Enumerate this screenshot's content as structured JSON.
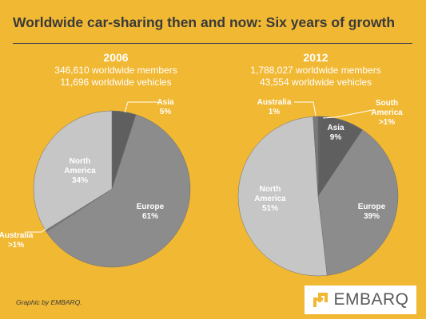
{
  "title": "Worldwide car-sharing then and now: Six years of growth",
  "credit": "Graphic by EMBARQ.",
  "logo_text": "EMBARQ",
  "colors": {
    "background": "#f1b833",
    "asia": "#5f5f5f",
    "south_america": "#5f5f5f",
    "europe": "#8c8c8c",
    "north_america": "#c6c6c6",
    "australia": "#7a7a7a"
  },
  "chart_data": [
    {
      "type": "pie",
      "title": "2006",
      "subtitle_lines": [
        "346,610 worldwide members",
        "11,696 worldwide vehicles"
      ],
      "slices": [
        {
          "name": "Asia",
          "label_lines": [
            "Asia",
            "5%"
          ],
          "value": 5
        },
        {
          "name": "Europe",
          "label_lines": [
            "Europe",
            "61%"
          ],
          "value": 61
        },
        {
          "name": "Australia",
          "label_lines": [
            "Australia",
            ">1%"
          ],
          "value": 0.4
        },
        {
          "name": "North America",
          "label_lines": [
            "North",
            "America",
            "34%"
          ],
          "value": 34
        }
      ]
    },
    {
      "type": "pie",
      "title": "2012",
      "subtitle_lines": [
        "1,788,027 worldwide members",
        "43,554 worldwide vehicles"
      ],
      "slices": [
        {
          "name": "South America",
          "label_lines": [
            "South",
            "America",
            ">1%"
          ],
          "value": 0.4
        },
        {
          "name": "Asia",
          "label_lines": [
            "Asia",
            "9%"
          ],
          "value": 9
        },
        {
          "name": "Europe",
          "label_lines": [
            "Europe",
            "39%"
          ],
          "value": 39
        },
        {
          "name": "North America",
          "label_lines": [
            "North",
            "America",
            "51%"
          ],
          "value": 51
        },
        {
          "name": "Australia",
          "label_lines": [
            "Australia",
            "1%"
          ],
          "value": 1
        }
      ]
    }
  ]
}
